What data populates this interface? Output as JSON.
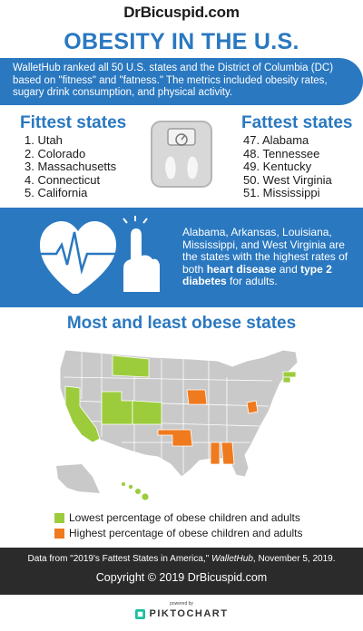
{
  "header": {
    "brand": "DrBicuspid.com",
    "title": "OBESITY IN THE U.S."
  },
  "intro": {
    "text": "WalletHub ranked all 50 U.S. states and the District of Columbia (DC) based on \"fitness\" and \"fatness.\" The metrics included obesity rates, sugary drink consumption, and physical activity."
  },
  "fittest": {
    "heading": "Fittest states",
    "items": [
      "1. Utah",
      "2. Colorado",
      "3. Massachusetts",
      "4. Connecticut",
      "5. California"
    ]
  },
  "fattest": {
    "heading": "Fattest states",
    "items": [
      "47. Alabama",
      "48. Tennessee",
      "49. Kentucky",
      "50. West Virginia",
      "51. Mississippi"
    ]
  },
  "disease": {
    "text_before": "Alabama, Arkansas, Louisiana, Mississippi, and West Virginia are the states with the highest rates of both ",
    "bold1": "heart disease",
    "text_mid": " and ",
    "bold2": "type 2 diabetes",
    "text_after": " for adults."
  },
  "map": {
    "heading": "Most and least obese states",
    "colors": {
      "lowest": "#9ccc3c",
      "highest": "#f07a1e",
      "other": "#c9c9c9"
    }
  },
  "legend": {
    "lowest": "Lowest percentage of obese children and adults",
    "highest": "Highest percentage of obese children and adults"
  },
  "footer": {
    "source_prefix": "Data from \"2019's Fattest States in America,\" ",
    "source_pub": "WalletHub",
    "source_suffix": ", November 5, 2019.",
    "copyright": "Copyright © 2019 DrBicuspid.com"
  },
  "powered": {
    "small": "powered by",
    "brand": "PIKTOCHART"
  }
}
